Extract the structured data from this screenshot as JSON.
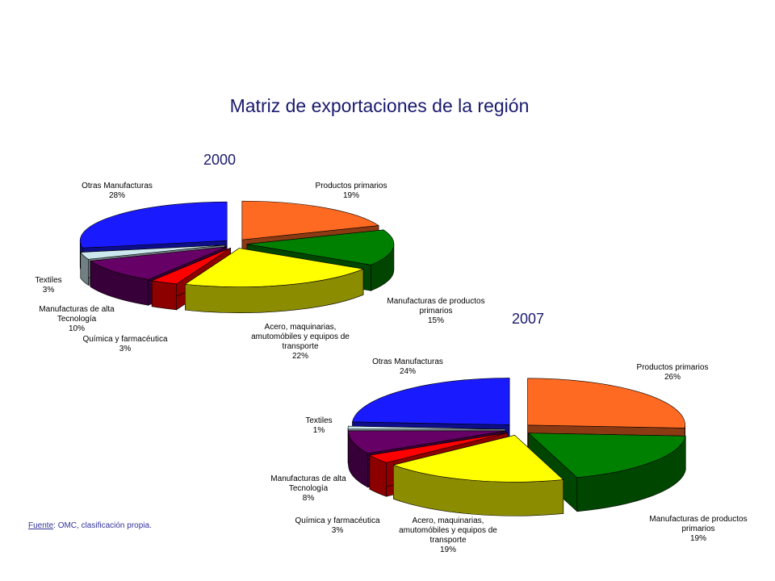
{
  "title": "Matriz de exportaciones de la región",
  "source": {
    "label": "Fuente",
    "text": ": OMC, clasificación propia."
  },
  "chart_data": [
    {
      "type": "pie",
      "title": "2000",
      "categories": [
        "Productos primarios",
        "Manufacturas de productos primarios",
        "Acero, maquinarias, amutomóbiles y equipos de transporte",
        "Química y farmacéutica",
        "Manufacturas de alta Tecnología",
        "Textiles",
        "Otras Manufacturas"
      ],
      "values": [
        19,
        15,
        22,
        3,
        10,
        3,
        28
      ],
      "value_labels": [
        "19%",
        "15%",
        "22%",
        "3%",
        "10%",
        "3%",
        "28%"
      ],
      "colors": [
        "#ff6a22",
        "#008000",
        "#ffff00",
        "#ff0000",
        "#660066",
        "#cce8ee",
        "#1a1aff"
      ]
    },
    {
      "type": "pie",
      "title": "2007",
      "categories": [
        "Productos primarios",
        "Manufacturas de productos primarios",
        "Acero, maquinarias, amutomóbiles y equipos de transporte",
        "Química y farmacéutica",
        "Manufacturas de alta Tecnología",
        "Textiles",
        "Otras Manufacturas"
      ],
      "values": [
        26,
        19,
        19,
        3,
        8,
        1,
        24
      ],
      "value_labels": [
        "26%",
        "19%",
        "19%",
        "3%",
        "8%",
        "1%",
        "24%"
      ],
      "colors": [
        "#ff6a22",
        "#008000",
        "#ffff00",
        "#ff0000",
        "#660066",
        "#cce8ee",
        "#1a1aff"
      ]
    }
  ]
}
